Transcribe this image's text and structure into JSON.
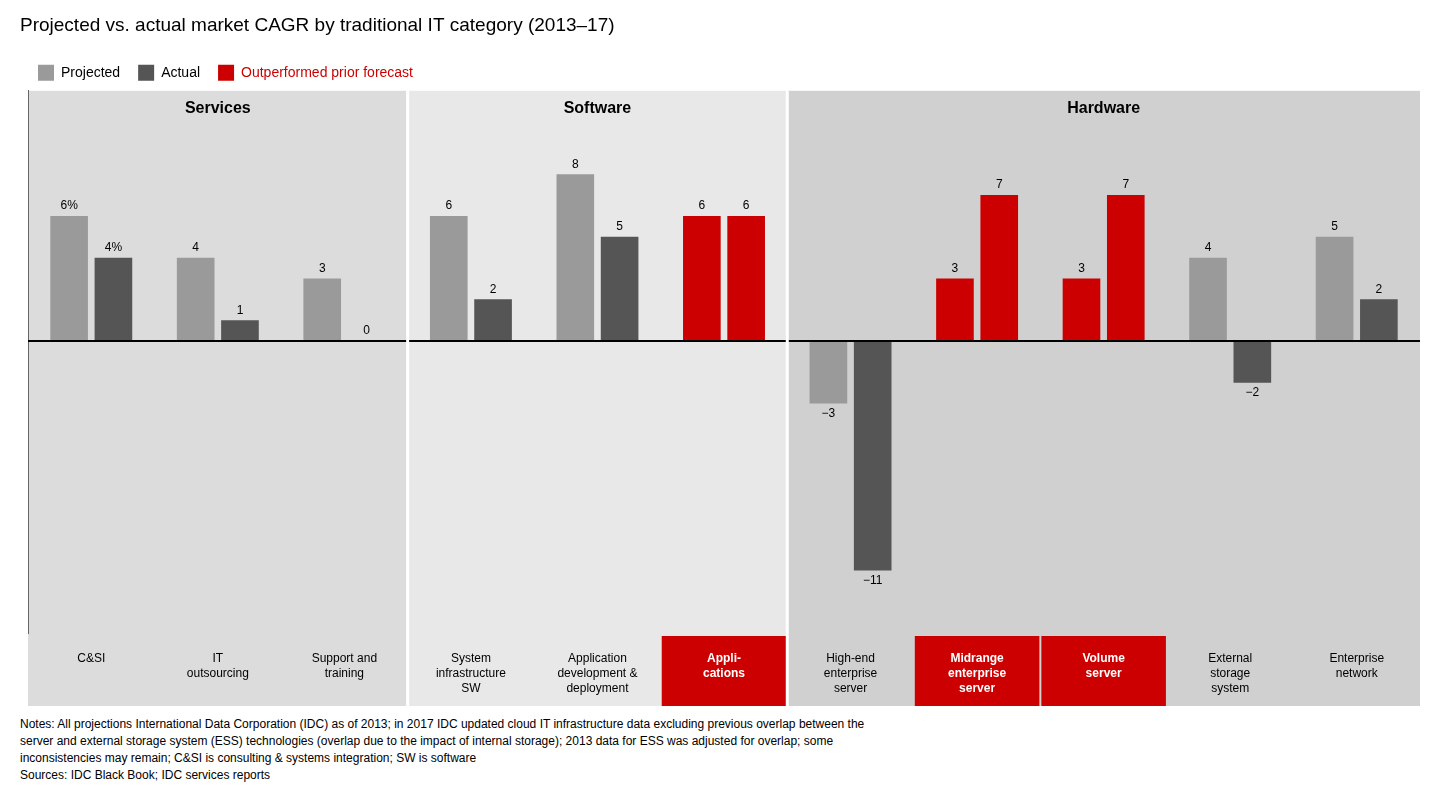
{
  "chart_data": {
    "type": "bar",
    "title": "Projected vs. actual market CAGR by traditional IT category (2013–17)",
    "categories": [
      "C&SI",
      "IT\noutsourcing",
      "Support and\ntraining",
      "System\ninfrastructure\nSW",
      "Application\ndevelopment &\ndeployment",
      "Appli-\ncations",
      "High-end\nenterprise\nserver",
      "Midrange\nenterprise\nserver",
      "Volume\nserver",
      "External\nstorage\nsystem",
      "Enterprise\nnetwork"
    ],
    "series": [
      {
        "name": "Projected",
        "color": "#9a9a9a",
        "colors": [
          "#9a9a9a",
          "#9a9a9a",
          "#9a9a9a",
          "#9a9a9a",
          "#9a9a9a",
          "#cc0000",
          "#9a9a9a",
          "#cc0000",
          "#cc0000",
          "#9a9a9a",
          "#9a9a9a"
        ],
        "values": [
          6,
          4,
          3,
          6,
          8,
          6,
          -3,
          3,
          3,
          4,
          5
        ],
        "value_labels": [
          "6%",
          "4",
          "3",
          "6",
          "8",
          "6",
          "−3",
          "3",
          "3",
          "4",
          "5"
        ]
      },
      {
        "name": "Actual",
        "color": "#555555",
        "colors": [
          "#555555",
          "#555555",
          "#555555",
          "#555555",
          "#555555",
          "#cc0000",
          "#555555",
          "#cc0000",
          "#cc0000",
          "#555555",
          "#555555"
        ],
        "values": [
          4,
          1,
          0,
          2,
          5,
          6,
          -11,
          7,
          7,
          -2,
          2
        ],
        "value_labels": [
          "4%",
          "1",
          "0",
          "2",
          "5",
          "6",
          "−11",
          "7",
          "7",
          "−2",
          "2"
        ]
      }
    ],
    "highlight": {
      "label": "Outperformed prior forecast",
      "color": "#cc0000",
      "flags": [
        false,
        false,
        false,
        false,
        false,
        true,
        false,
        true,
        true,
        false,
        false
      ]
    },
    "sections": [
      {
        "name": "Services",
        "start": 0,
        "end": 3,
        "color": "#dcdcdc"
      },
      {
        "name": "Software",
        "start": 3,
        "end": 6,
        "color": "#e8e8e8"
      },
      {
        "name": "Hardware",
        "start": 6,
        "end": 11,
        "color": "#d0d0d0"
      }
    ],
    "ylim": [
      -14,
      12
    ],
    "yticks": [],
    "tick_labels": "x",
    "grid": false,
    "legend": "top",
    "data_labels": true,
    "notes": [
      "Notes: All projections International Data Corporation (IDC) as of 2013; in 2017 IDC updated cloud IT infrastructure data excluding previous overlap between the",
      "server and external storage system (ESS) technologies (overlap due to the impact of internal storage); 2013 data for ESS was adjusted for overlap; some",
      "inconsistencies may remain; C&SI is consulting & systems integration; SW is software",
      "Sources: IDC Black Book; IDC services reports"
    ]
  }
}
